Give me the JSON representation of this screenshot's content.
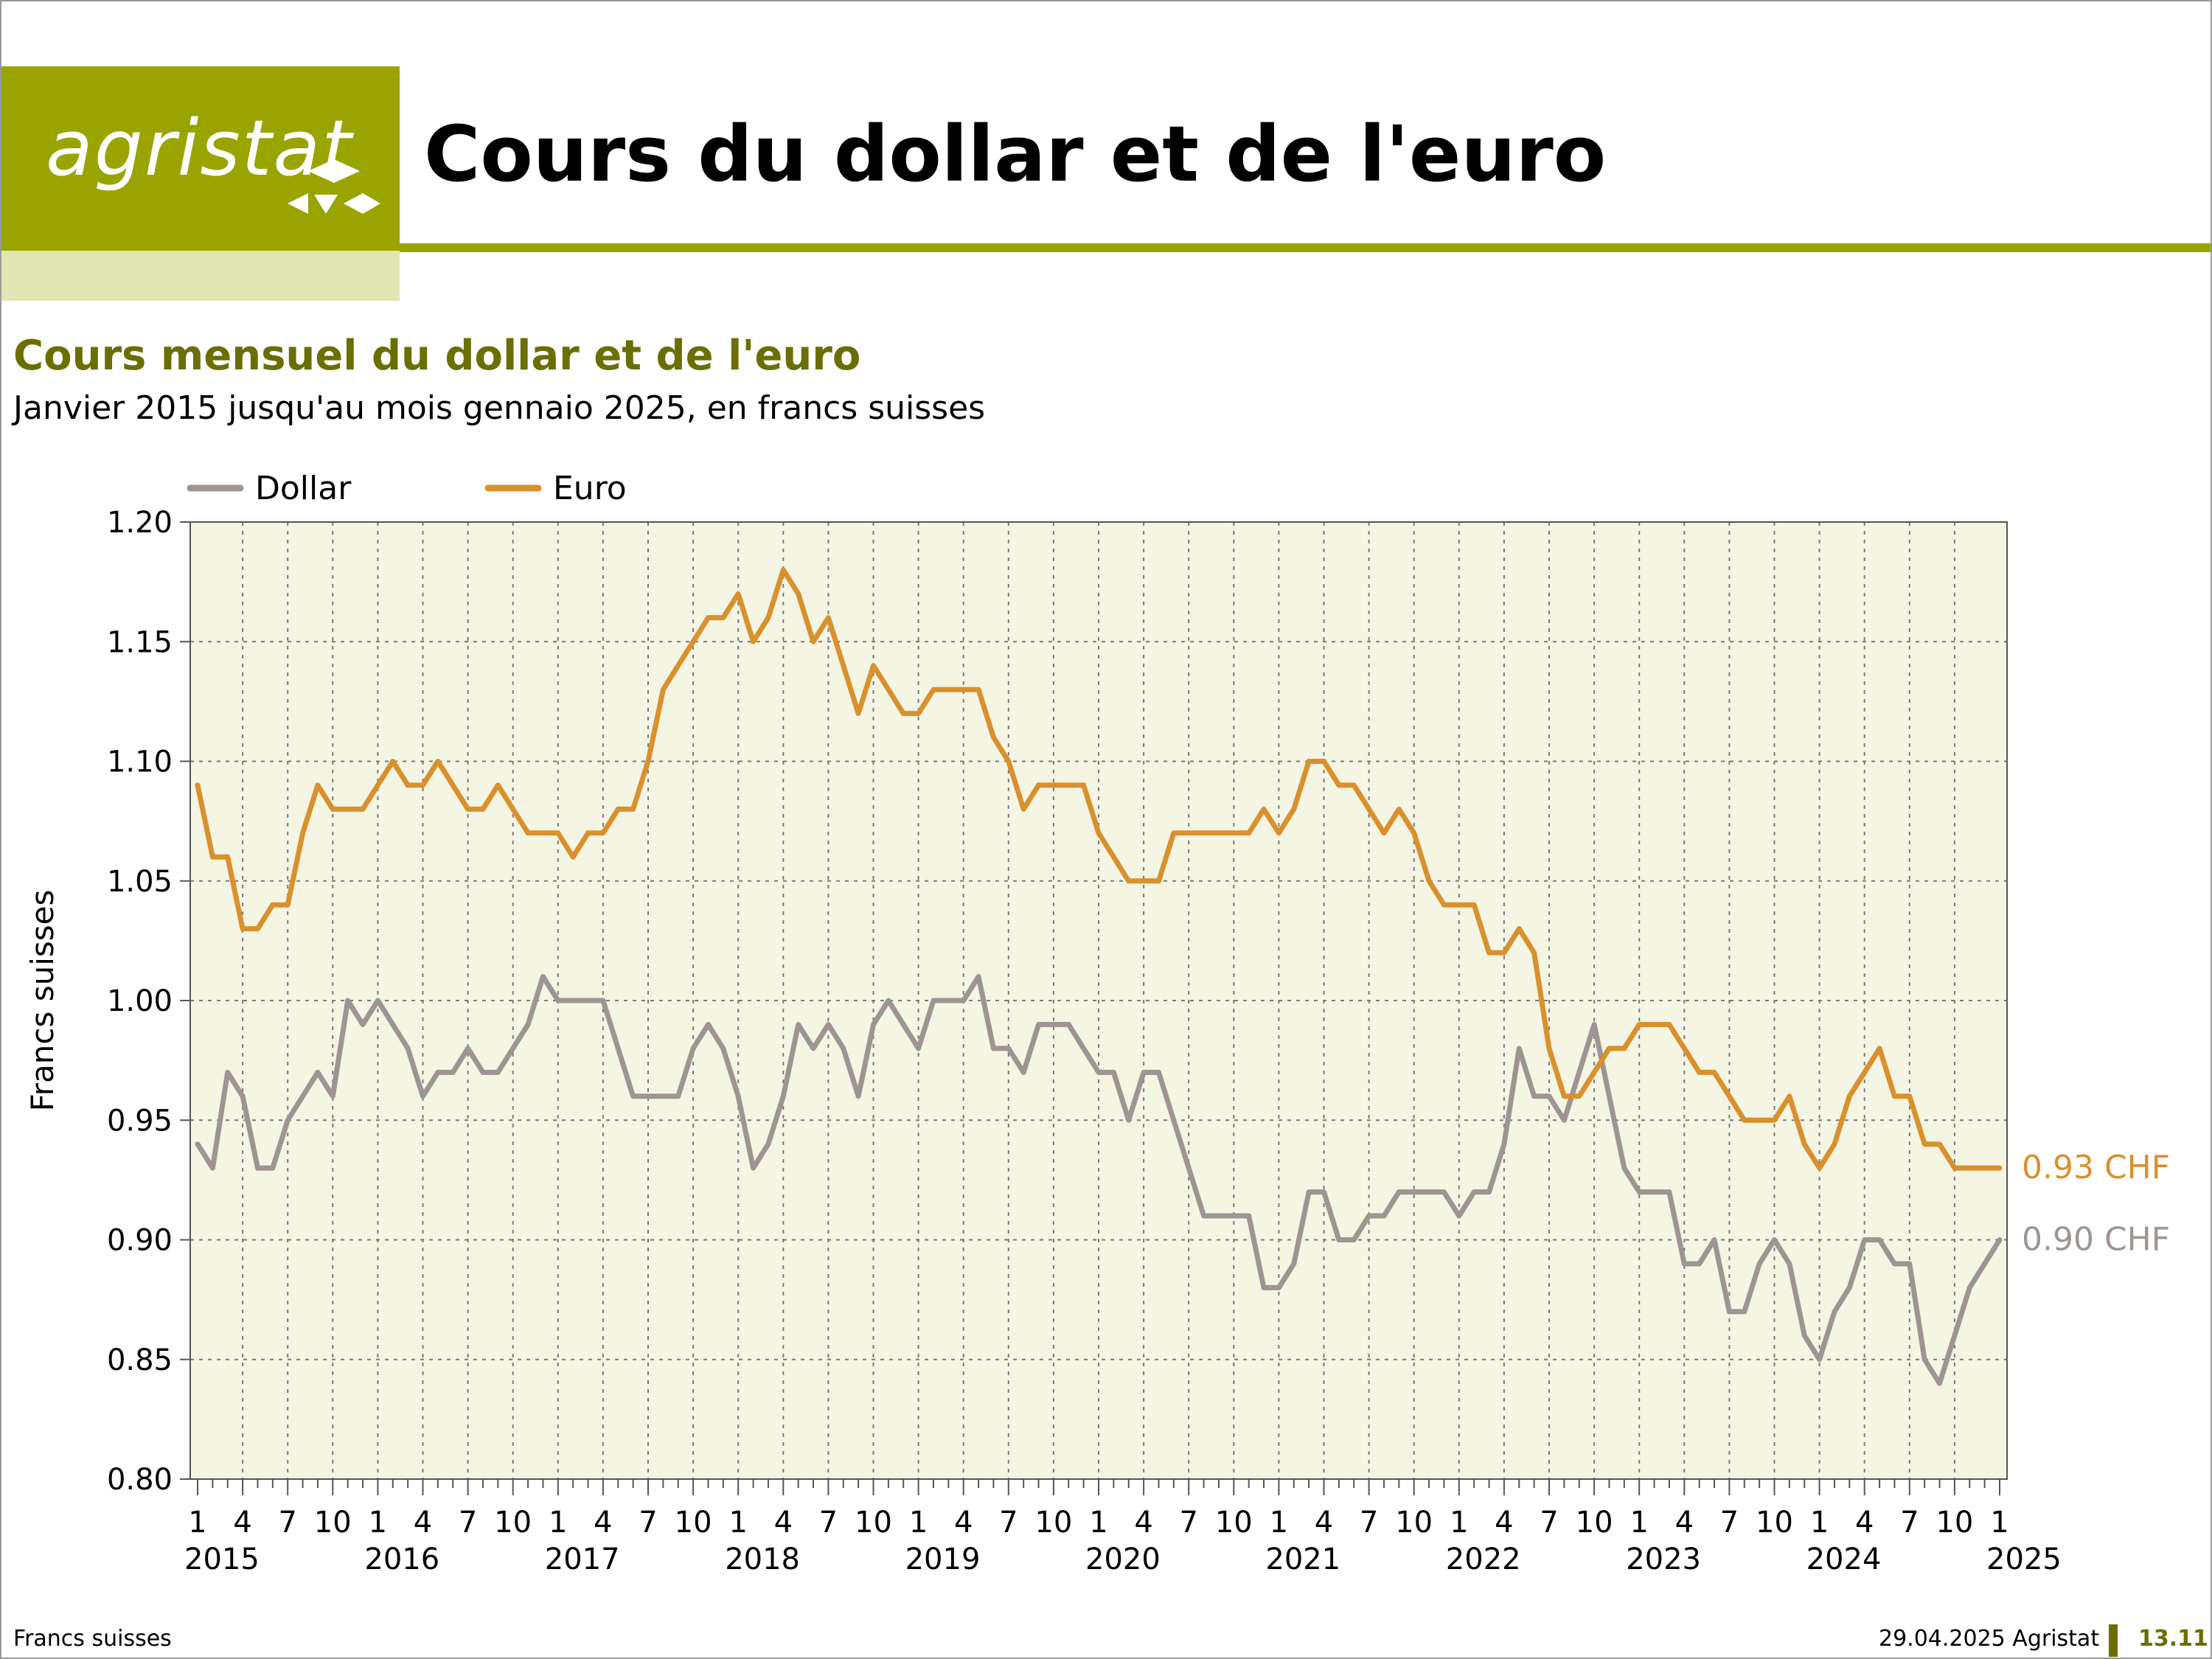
{
  "header": {
    "logo_text": "agristat",
    "title": "Cours du dollar et de l'euro"
  },
  "footer": {
    "left": "Francs suisses",
    "date": "29.04.2025 Agristat",
    "page": "13.11"
  },
  "colors": {
    "brand": "#9aa400",
    "brand_light": "#e2e6b4",
    "title_dark": "#6b6e00",
    "plot_bg": "#f4f5e3",
    "dollar": "#9e9592",
    "euro": "#d9912c"
  },
  "chart_data": {
    "type": "line",
    "title": "Cours mensuel du dollar et de l'euro",
    "subtitle": "Janvier 2015 jusqu'au mois gennaio 2025, en francs suisses",
    "xlabel": "",
    "ylabel": "Francs suisses",
    "ylim": [
      0.8,
      1.2
    ],
    "y_ticks": [
      "0.80",
      "0.85",
      "0.90",
      "0.95",
      "1.00",
      "1.05",
      "1.10",
      "1.15",
      "1.20"
    ],
    "x_month_labels": [
      "1",
      "4",
      "7",
      "10"
    ],
    "x_year_labels": [
      "2015",
      "2016",
      "2017",
      "2018",
      "2019",
      "2020",
      "2021",
      "2022",
      "2023",
      "2024",
      "2025"
    ],
    "x_start": "2015-01",
    "x_end": "2025-01",
    "grid": true,
    "legend_position": "top-left",
    "series": [
      {
        "name": "Dollar",
        "end_label": "0.90 CHF",
        "values": [
          0.94,
          0.93,
          0.97,
          0.96,
          0.93,
          0.93,
          0.95,
          0.96,
          0.97,
          0.96,
          1.0,
          0.99,
          1.0,
          0.99,
          0.98,
          0.96,
          0.97,
          0.97,
          0.98,
          0.97,
          0.97,
          0.98,
          0.99,
          1.01,
          1.0,
          1.0,
          1.0,
          1.0,
          0.98,
          0.96,
          0.96,
          0.96,
          0.96,
          0.98,
          0.99,
          0.98,
          0.96,
          0.93,
          0.94,
          0.96,
          0.99,
          0.98,
          0.99,
          0.98,
          0.96,
          0.99,
          1.0,
          0.99,
          0.98,
          1.0,
          1.0,
          1.0,
          1.01,
          0.98,
          0.98,
          0.97,
          0.99,
          0.99,
          0.99,
          0.98,
          0.97,
          0.97,
          0.95,
          0.97,
          0.97,
          0.95,
          0.93,
          0.91,
          0.91,
          0.91,
          0.91,
          0.88,
          0.88,
          0.89,
          0.92,
          0.92,
          0.9,
          0.9,
          0.91,
          0.91,
          0.92,
          0.92,
          0.92,
          0.92,
          0.91,
          0.92,
          0.92,
          0.94,
          0.98,
          0.96,
          0.96,
          0.95,
          0.97,
          0.99,
          0.96,
          0.93,
          0.92,
          0.92,
          0.92,
          0.89,
          0.89,
          0.9,
          0.87,
          0.87,
          0.89,
          0.9,
          0.89,
          0.86,
          0.85,
          0.87,
          0.88,
          0.9,
          0.9,
          0.89,
          0.89,
          0.85,
          0.84,
          0.86,
          0.88,
          0.89,
          0.9
        ]
      },
      {
        "name": "Euro",
        "end_label": "0.93 CHF",
        "values": [
          1.09,
          1.06,
          1.06,
          1.03,
          1.03,
          1.04,
          1.04,
          1.07,
          1.09,
          1.08,
          1.08,
          1.08,
          1.09,
          1.1,
          1.09,
          1.09,
          1.1,
          1.09,
          1.08,
          1.08,
          1.09,
          1.08,
          1.07,
          1.07,
          1.07,
          1.06,
          1.07,
          1.07,
          1.08,
          1.08,
          1.1,
          1.13,
          1.14,
          1.15,
          1.16,
          1.16,
          1.17,
          1.15,
          1.16,
          1.18,
          1.17,
          1.15,
          1.16,
          1.14,
          1.12,
          1.14,
          1.13,
          1.12,
          1.12,
          1.13,
          1.13,
          1.13,
          1.13,
          1.11,
          1.1,
          1.08,
          1.09,
          1.09,
          1.09,
          1.09,
          1.07,
          1.06,
          1.05,
          1.05,
          1.05,
          1.07,
          1.07,
          1.07,
          1.07,
          1.07,
          1.07,
          1.08,
          1.07,
          1.08,
          1.1,
          1.1,
          1.09,
          1.09,
          1.08,
          1.07,
          1.08,
          1.07,
          1.05,
          1.04,
          1.04,
          1.04,
          1.02,
          1.02,
          1.03,
          1.02,
          0.98,
          0.96,
          0.96,
          0.97,
          0.98,
          0.98,
          0.99,
          0.99,
          0.99,
          0.98,
          0.97,
          0.97,
          0.96,
          0.95,
          0.95,
          0.95,
          0.96,
          0.94,
          0.93,
          0.94,
          0.96,
          0.97,
          0.98,
          0.96,
          0.96,
          0.94,
          0.94,
          0.93,
          0.93,
          0.93,
          0.93
        ]
      }
    ]
  }
}
